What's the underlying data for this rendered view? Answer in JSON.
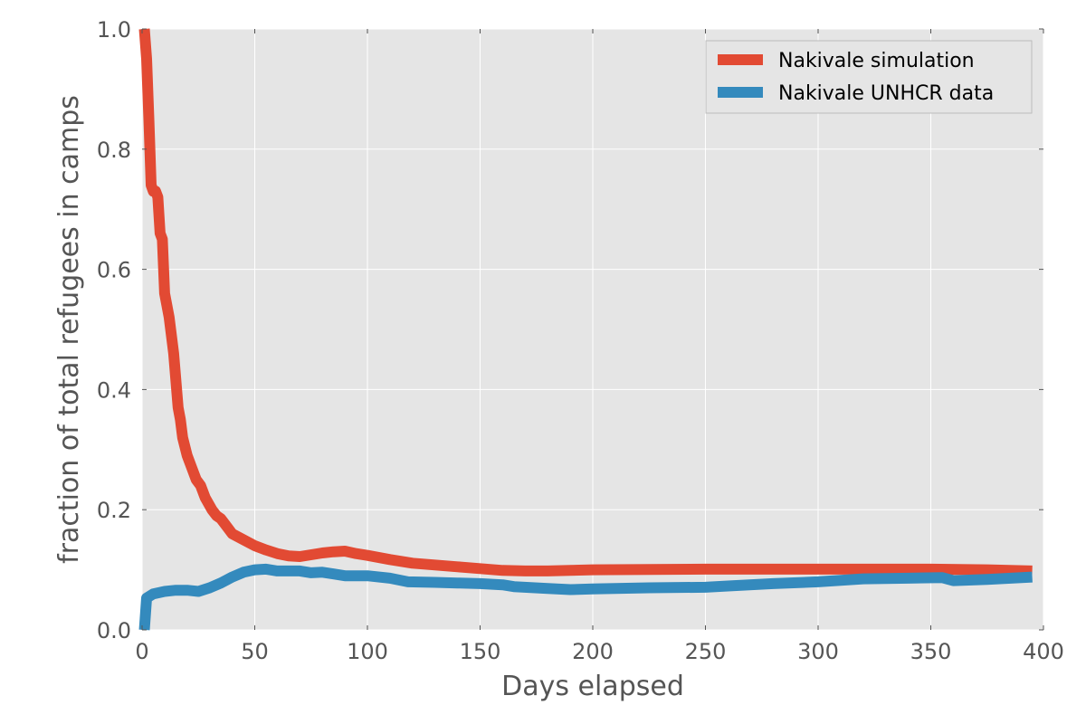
{
  "chart_data": {
    "type": "line",
    "title": "",
    "xlabel": "Days elapsed",
    "ylabel": "fraction of total refugees in camps",
    "xlim": [
      0,
      400
    ],
    "ylim": [
      0.0,
      1.0
    ],
    "x_ticks": [
      "0",
      "50",
      "100",
      "150",
      "200",
      "250",
      "300",
      "350",
      "400"
    ],
    "y_ticks": [
      "0.0",
      "0.2",
      "0.4",
      "0.6",
      "0.8",
      "1.0"
    ],
    "grid": true,
    "legend_position": "top-right",
    "series": [
      {
        "name": "Nakivale simulation",
        "color": "#e24a33",
        "points": [
          [
            1,
            1.0
          ],
          [
            2,
            0.95
          ],
          [
            3,
            0.85
          ],
          [
            4,
            0.74
          ],
          [
            5,
            0.73
          ],
          [
            6,
            0.73
          ],
          [
            7,
            0.72
          ],
          [
            8,
            0.66
          ],
          [
            9,
            0.65
          ],
          [
            10,
            0.56
          ],
          [
            12,
            0.52
          ],
          [
            14,
            0.46
          ],
          [
            16,
            0.37
          ],
          [
            17,
            0.35
          ],
          [
            18,
            0.32
          ],
          [
            20,
            0.29
          ],
          [
            22,
            0.27
          ],
          [
            24,
            0.25
          ],
          [
            26,
            0.24
          ],
          [
            28,
            0.22
          ],
          [
            31,
            0.2
          ],
          [
            33,
            0.19
          ],
          [
            35,
            0.185
          ],
          [
            38,
            0.17
          ],
          [
            40,
            0.16
          ],
          [
            45,
            0.15
          ],
          [
            50,
            0.14
          ],
          [
            55,
            0.133
          ],
          [
            60,
            0.127
          ],
          [
            65,
            0.123
          ],
          [
            70,
            0.122
          ],
          [
            75,
            0.125
          ],
          [
            80,
            0.128
          ],
          [
            85,
            0.13
          ],
          [
            90,
            0.131
          ],
          [
            95,
            0.127
          ],
          [
            100,
            0.124
          ],
          [
            110,
            0.117
          ],
          [
            120,
            0.111
          ],
          [
            130,
            0.108
          ],
          [
            140,
            0.105
          ],
          [
            150,
            0.102
          ],
          [
            160,
            0.099
          ],
          [
            170,
            0.098
          ],
          [
            180,
            0.098
          ],
          [
            190,
            0.099
          ],
          [
            200,
            0.1
          ],
          [
            250,
            0.101
          ],
          [
            300,
            0.101
          ],
          [
            350,
            0.101
          ],
          [
            375,
            0.1
          ],
          [
            395,
            0.098
          ]
        ]
      },
      {
        "name": "Nakivale UNHCR data",
        "color": "#348abd",
        "points": [
          [
            1,
            0.0
          ],
          [
            2,
            0.053
          ],
          [
            5,
            0.06
          ],
          [
            10,
            0.064
          ],
          [
            15,
            0.066
          ],
          [
            20,
            0.066
          ],
          [
            25,
            0.064
          ],
          [
            30,
            0.07
          ],
          [
            35,
            0.078
          ],
          [
            40,
            0.088
          ],
          [
            45,
            0.096
          ],
          [
            50,
            0.1
          ],
          [
            55,
            0.101
          ],
          [
            60,
            0.098
          ],
          [
            70,
            0.098
          ],
          [
            75,
            0.095
          ],
          [
            80,
            0.096
          ],
          [
            85,
            0.093
          ],
          [
            90,
            0.09
          ],
          [
            100,
            0.09
          ],
          [
            110,
            0.086
          ],
          [
            118,
            0.08
          ],
          [
            130,
            0.079
          ],
          [
            140,
            0.078
          ],
          [
            150,
            0.077
          ],
          [
            160,
            0.075
          ],
          [
            165,
            0.072
          ],
          [
            180,
            0.069
          ],
          [
            190,
            0.067
          ],
          [
            200,
            0.068
          ],
          [
            225,
            0.07
          ],
          [
            250,
            0.071
          ],
          [
            260,
            0.073
          ],
          [
            280,
            0.077
          ],
          [
            300,
            0.08
          ],
          [
            320,
            0.085
          ],
          [
            340,
            0.086
          ],
          [
            355,
            0.087
          ],
          [
            360,
            0.082
          ],
          [
            375,
            0.084
          ],
          [
            395,
            0.088
          ]
        ]
      }
    ]
  }
}
